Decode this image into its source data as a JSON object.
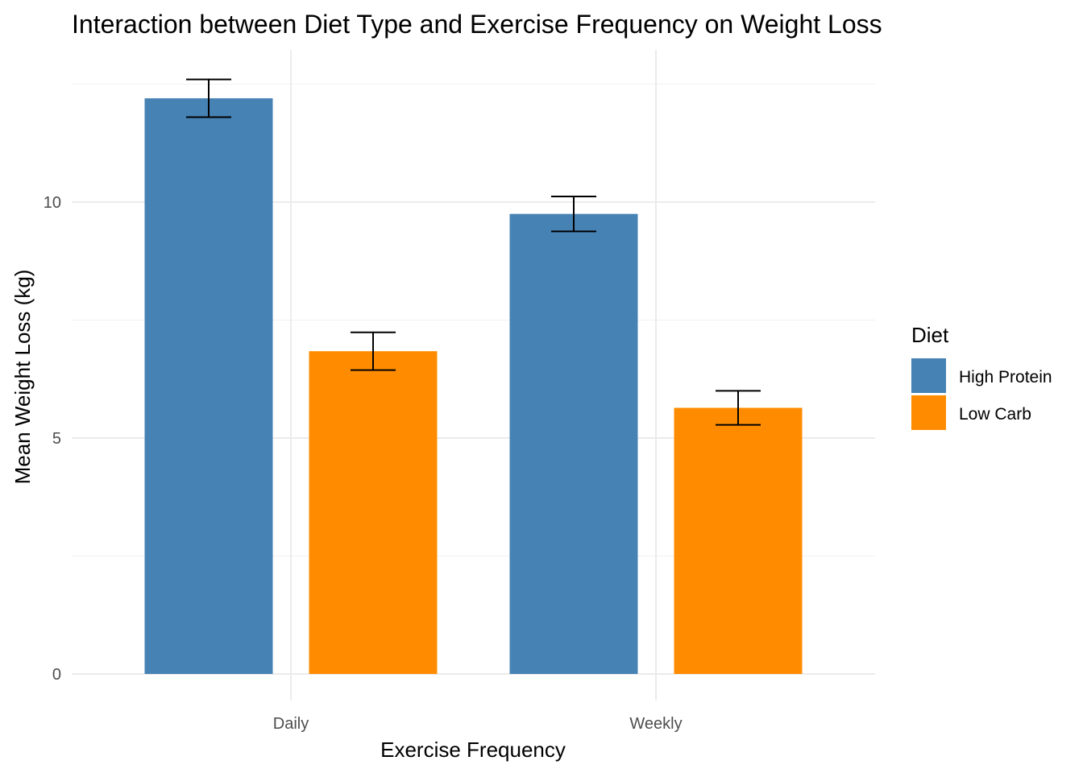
{
  "chart_data": {
    "type": "bar",
    "title": "Interaction between Diet Type and Exercise Frequency on Weight Loss",
    "xlabel": "Exercise Frequency",
    "ylabel": "Mean Weight Loss (kg)",
    "categories": [
      "Daily",
      "Weekly"
    ],
    "ylim": [
      -0.5,
      13.3
    ],
    "yticks": [
      0,
      5,
      10
    ],
    "grid": true,
    "legend": {
      "title": "Diet",
      "placement": "right"
    },
    "series": [
      {
        "name": "High Protein",
        "color": "#4682B4",
        "values": [
          12.2,
          9.75
        ],
        "error_low": [
          11.8,
          9.38
        ],
        "error_high": [
          12.6,
          10.12
        ]
      },
      {
        "name": "Low Carb",
        "color": "#FF8C00",
        "values": [
          6.84,
          5.64
        ],
        "error_low": [
          6.44,
          5.28
        ],
        "error_high": [
          7.24,
          6.0
        ]
      }
    ]
  }
}
